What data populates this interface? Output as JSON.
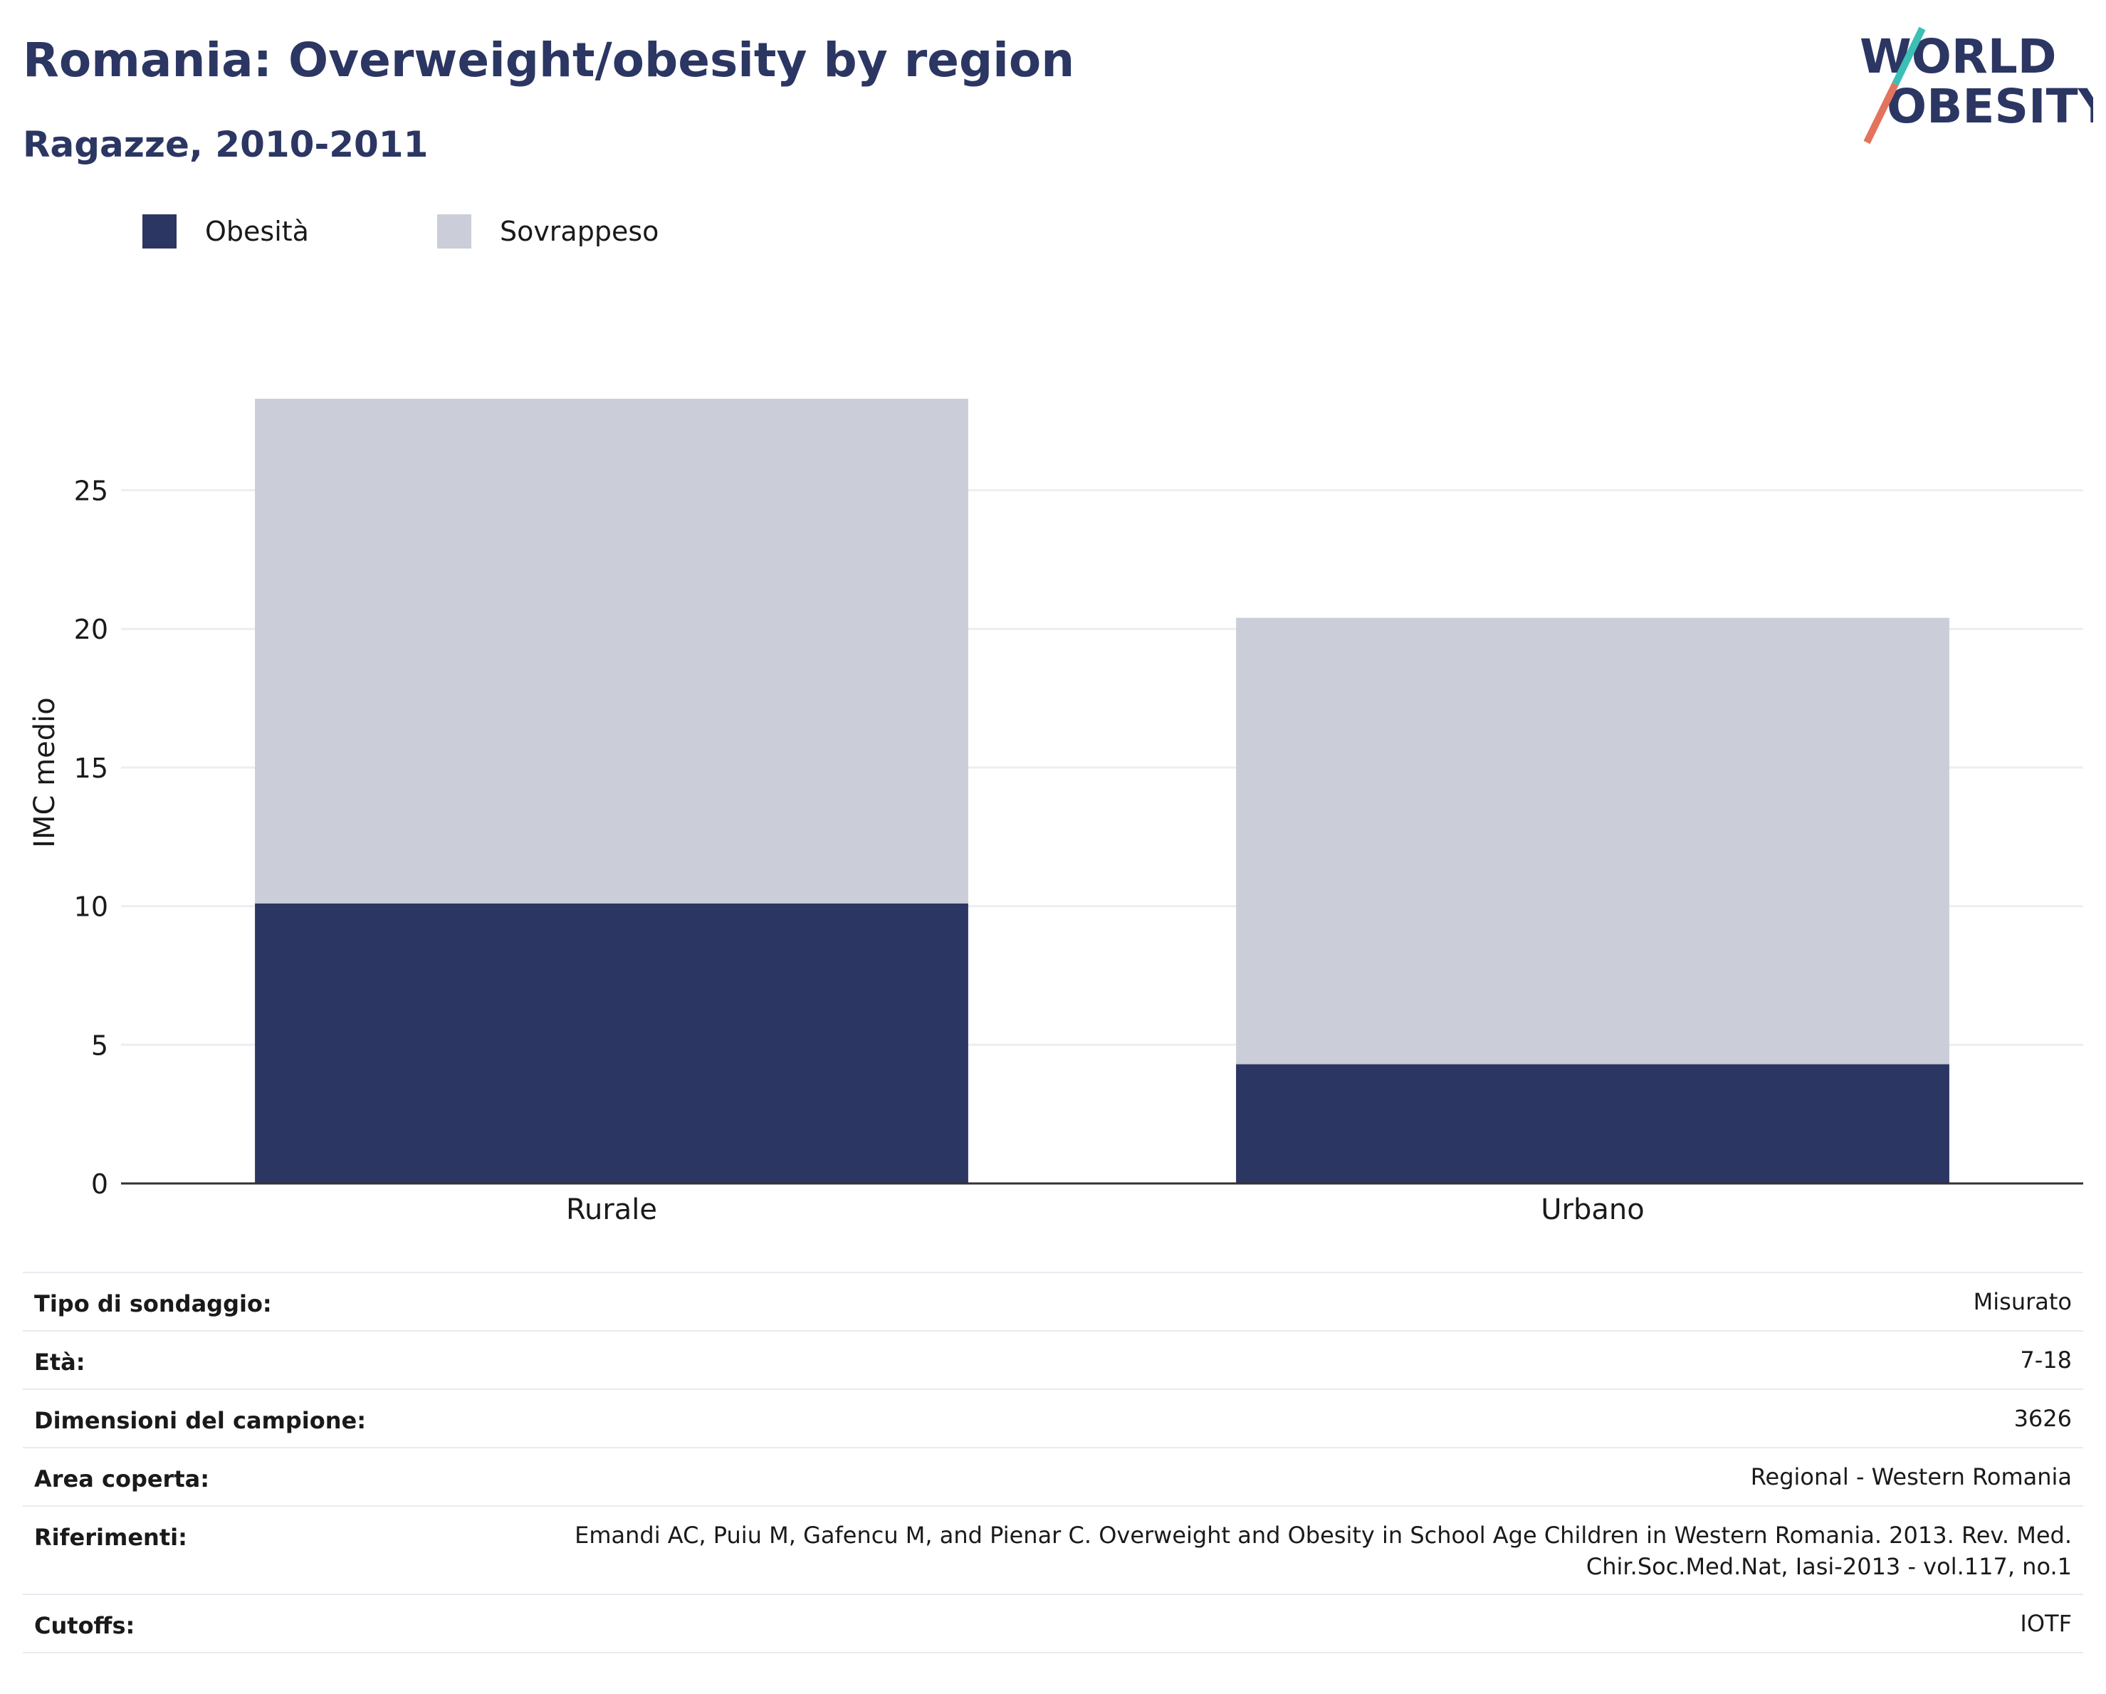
{
  "header": {
    "title": "Romania: Overweight/obesity by region",
    "subtitle": "Ragazze, 2010-2011"
  },
  "logo": {
    "line1": "WORLD",
    "line2": "OBESITY"
  },
  "colors": {
    "obesity": "#2b3663",
    "overweight": "#cbcdd8",
    "grid": "#ebeef2",
    "axis": "#333333",
    "accent_teal": "#3cbfb5",
    "accent_red": "#e4735d"
  },
  "chart_data": {
    "type": "bar",
    "stacked": true,
    "categories": [
      "Rurale",
      "Urbano"
    ],
    "series": [
      {
        "name": "Obesità",
        "values": [
          10.1,
          4.3
        ],
        "color": "#2b3663"
      },
      {
        "name": "Sovrappeso",
        "values": [
          18.2,
          16.1
        ],
        "color": "#cbcdd8"
      }
    ],
    "ylabel": "IMC medio",
    "xlabel": "",
    "ylim": [
      0,
      28.3
    ],
    "yticks": [
      0,
      5,
      10,
      15,
      20,
      25
    ],
    "grid": true,
    "legend_position": "top-left"
  },
  "info": [
    {
      "key": "Tipo di sondaggio:",
      "value": "Misurato"
    },
    {
      "key": "Età:",
      "value": "7-18"
    },
    {
      "key": "Dimensioni del campione:",
      "value": "3626"
    },
    {
      "key": "Area coperta:",
      "value": "Regional - Western Romania"
    },
    {
      "key": "Riferimenti:",
      "value": "Emandi AC, Puiu M, Gafencu M, and Pienar C. Overweight and Obesity in School Age Children in Western Romania. 2013. Rev. Med. Chir.Soc.Med.Nat, Iasi-2013 - vol.117, no.1",
      "line1": "Emandi AC, Puiu M, Gafencu M, and Pienar C. Overweight and Obesity in School Age Children in Western Romania. 2013. Rev. Med.",
      "line2": "Chir.Soc.Med.Nat, Iasi-2013 - vol.117, no.1"
    },
    {
      "key": "Cutoffs:",
      "value": "IOTF"
    }
  ]
}
